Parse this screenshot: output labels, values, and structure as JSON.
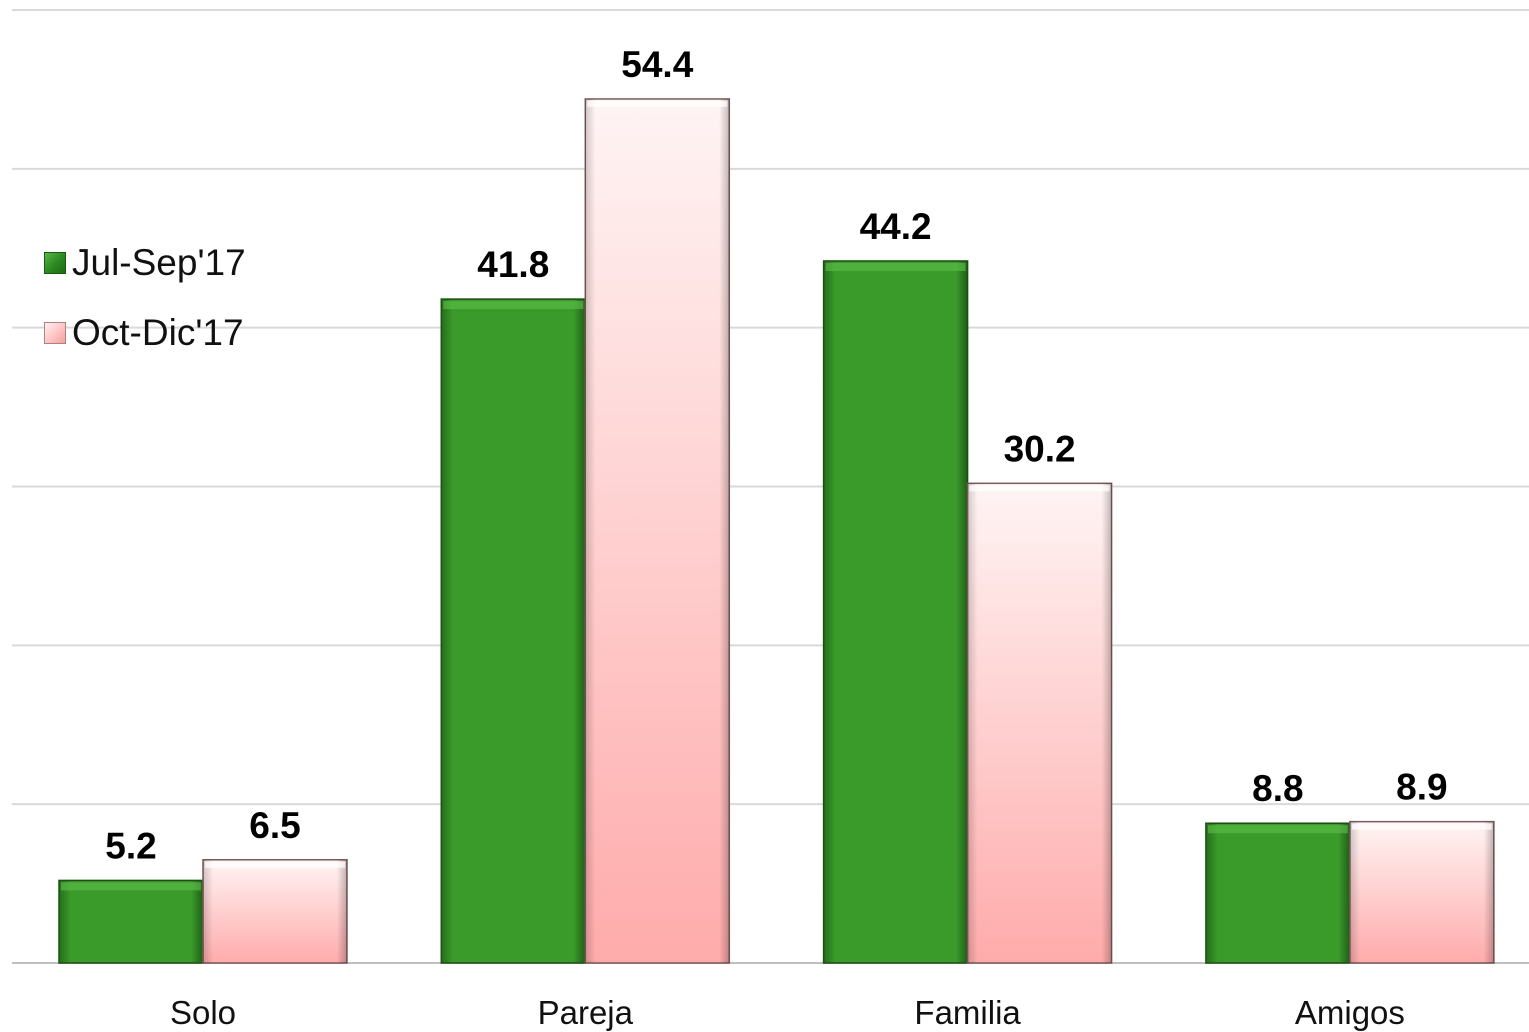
{
  "chart_data": {
    "type": "bar",
    "categories": [
      "Solo",
      "Pareja",
      "Familia",
      "Amigos"
    ],
    "series": [
      {
        "name": "Jul-Sep'17",
        "values": [
          5.2,
          41.8,
          44.2,
          8.8
        ],
        "color": "#3a9a2a"
      },
      {
        "name": "Oct-Dic'17",
        "values": [
          6.5,
          54.4,
          30.2,
          8.9
        ],
        "color": "#ffc4c4"
      }
    ],
    "ylim": [
      0,
      60
    ],
    "grid": true,
    "legend_position": "left"
  }
}
